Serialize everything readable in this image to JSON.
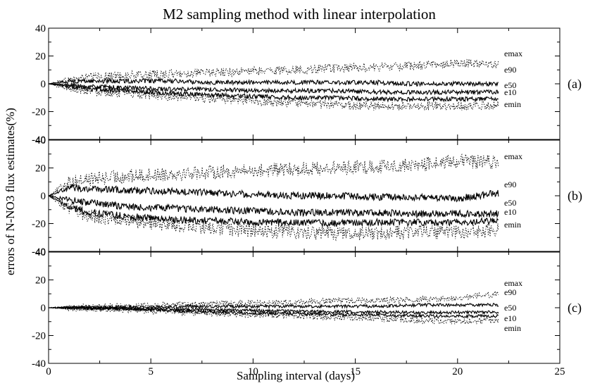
{
  "chart_data": {
    "type": "line",
    "title": "M2 sampling method with linear interpolation",
    "xlabel": "Sampling interval (days)",
    "ylabel": "errors of N-NO3 flux estimates(%)",
    "xlim": [
      0,
      25
    ],
    "x_ticks": [
      "0",
      "5",
      "10",
      "15",
      "20",
      "25"
    ],
    "ylim": [
      -40,
      40
    ],
    "y_ticks": [
      "40",
      "20",
      "0",
      "-20",
      "-40"
    ],
    "grid": false,
    "x_range": [
      0,
      22
    ],
    "panels": [
      {
        "label": "(a)",
        "series": [
          {
            "name": "emax",
            "style": "dotted",
            "x": [
              0,
              1,
              2,
              4,
              6,
              8,
              10,
              12,
              14,
              16,
              18,
              20,
              22
            ],
            "values": [
              0,
              3,
              5,
              6,
              7,
              8,
              9,
              10,
              11,
              12,
              13,
              15,
              14
            ]
          },
          {
            "name": "e90",
            "style": "solid",
            "x": [
              0,
              1,
              2,
              4,
              6,
              8,
              10,
              12,
              14,
              16,
              18,
              20,
              22
            ],
            "values": [
              0,
              2,
              2,
              2,
              2,
              1,
              1,
              1,
              1,
              1,
              0,
              0,
              0
            ]
          },
          {
            "name": "e50",
            "style": "solid",
            "x": [
              0,
              1,
              2,
              4,
              6,
              8,
              10,
              12,
              14,
              16,
              18,
              20,
              22
            ],
            "values": [
              0,
              -1,
              -2,
              -3,
              -4,
              -4,
              -5,
              -5,
              -5,
              -6,
              -6,
              -6,
              -6
            ]
          },
          {
            "name": "e10",
            "style": "solid",
            "x": [
              0,
              1,
              2,
              4,
              6,
              8,
              10,
              12,
              14,
              16,
              18,
              20,
              22
            ],
            "values": [
              0,
              -2,
              -4,
              -5,
              -7,
              -8,
              -9,
              -10,
              -10,
              -11,
              -11,
              -11,
              -11
            ]
          },
          {
            "name": "emin",
            "style": "dotted",
            "x": [
              0,
              1,
              2,
              4,
              6,
              8,
              10,
              12,
              14,
              16,
              18,
              20,
              22
            ],
            "values": [
              0,
              -3,
              -5,
              -7,
              -9,
              -11,
              -12,
              -14,
              -15,
              -16,
              -16,
              -16,
              -15
            ]
          }
        ]
      },
      {
        "label": "(b)",
        "series": [
          {
            "name": "emax",
            "style": "dotted",
            "x": [
              0,
              1,
              2,
              4,
              6,
              8,
              10,
              12,
              14,
              16,
              18,
              20,
              22
            ],
            "values": [
              0,
              10,
              12,
              14,
              16,
              17,
              18,
              19,
              20,
              21,
              22,
              25,
              24
            ]
          },
          {
            "name": "e90",
            "style": "solid",
            "x": [
              0,
              1,
              2,
              4,
              6,
              8,
              10,
              12,
              14,
              16,
              18,
              20,
              22
            ],
            "values": [
              0,
              6,
              5,
              4,
              3,
              2,
              1,
              0,
              0,
              -1,
              -1,
              -2,
              2
            ]
          },
          {
            "name": "e50",
            "style": "solid",
            "x": [
              0,
              1,
              2,
              4,
              6,
              8,
              10,
              12,
              14,
              16,
              18,
              20,
              22
            ],
            "values": [
              0,
              -3,
              -5,
              -8,
              -9,
              -10,
              -11,
              -12,
              -12,
              -12,
              -13,
              -13,
              -13
            ]
          },
          {
            "name": "e10",
            "style": "solid",
            "x": [
              0,
              1,
              2,
              4,
              6,
              8,
              10,
              12,
              14,
              16,
              18,
              20,
              22
            ],
            "values": [
              0,
              -8,
              -12,
              -15,
              -17,
              -18,
              -19,
              -19,
              -20,
              -19,
              -19,
              -19,
              -18
            ]
          },
          {
            "name": "emin",
            "style": "dotted",
            "x": [
              0,
              1,
              2,
              4,
              6,
              8,
              10,
              12,
              14,
              16,
              18,
              20,
              22
            ],
            "values": [
              0,
              -10,
              -14,
              -18,
              -21,
              -23,
              -25,
              -26,
              -27,
              -27,
              -26,
              -26,
              -25
            ]
          }
        ]
      },
      {
        "label": "(c)",
        "series": [
          {
            "name": "emax",
            "style": "dotted",
            "x": [
              0,
              1,
              2,
              4,
              6,
              8,
              10,
              12,
              14,
              16,
              18,
              20,
              22
            ],
            "values": [
              0,
              0.3,
              0.6,
              1,
              2,
              3,
              3,
              4,
              5,
              5,
              6,
              7,
              10
            ]
          },
          {
            "name": "e90",
            "style": "solid",
            "x": [
              0,
              1,
              2,
              4,
              6,
              8,
              10,
              12,
              14,
              16,
              18,
              20,
              22
            ],
            "values": [
              0,
              0.2,
              0.3,
              0.5,
              1,
              1,
              1,
              1,
              1,
              1,
              2,
              2,
              2
            ]
          },
          {
            "name": "e50",
            "style": "solid",
            "x": [
              0,
              1,
              2,
              4,
              6,
              8,
              10,
              12,
              14,
              16,
              18,
              20,
              22
            ],
            "values": [
              0,
              0,
              -0.3,
              -0.5,
              -1,
              -1.5,
              -2,
              -2.5,
              -3,
              -3,
              -3.5,
              -3.5,
              -3
            ]
          },
          {
            "name": "e10",
            "style": "solid",
            "x": [
              0,
              1,
              2,
              4,
              6,
              8,
              10,
              12,
              14,
              16,
              18,
              20,
              22
            ],
            "values": [
              0,
              -0.2,
              -0.5,
              -1,
              -2,
              -3,
              -4,
              -4,
              -5,
              -5,
              -6,
              -6,
              -6
            ]
          },
          {
            "name": "emin",
            "style": "dotted",
            "x": [
              0,
              1,
              2,
              4,
              6,
              8,
              10,
              12,
              14,
              16,
              18,
              20,
              22
            ],
            "values": [
              0,
              -0.3,
              -0.8,
              -1.5,
              -3,
              -4,
              -5,
              -6,
              -7,
              -8,
              -9,
              -10,
              -9
            ]
          }
        ]
      }
    ]
  }
}
